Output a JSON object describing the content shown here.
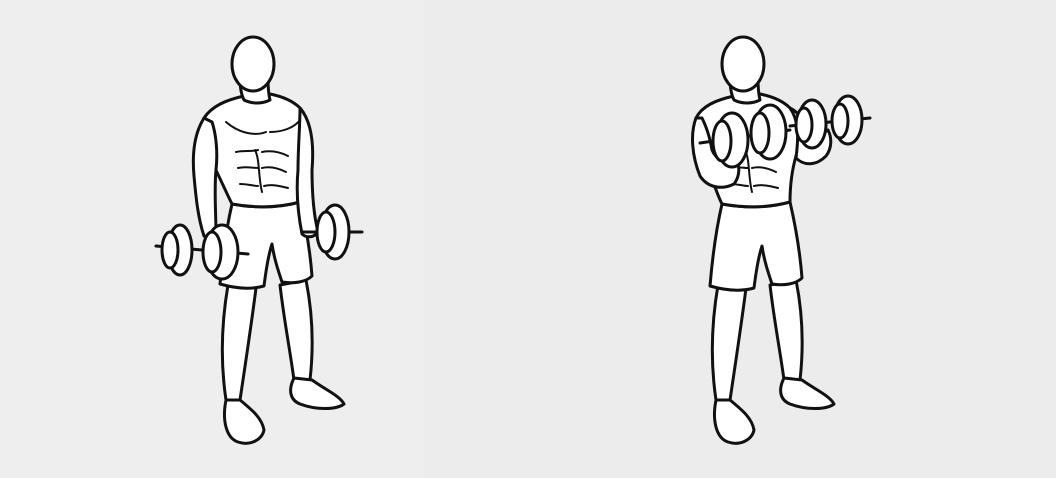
{
  "illustration": {
    "panels": [
      {
        "id": "start-position",
        "pose": "arms-down-holding-dumbbells"
      },
      {
        "id": "end-position",
        "pose": "arms-curled-holding-dumbbells"
      }
    ]
  },
  "colors": {
    "background_left": "#eeeeee",
    "background_right": "#ececec",
    "line": "#111111",
    "fill": "#ffffff"
  }
}
